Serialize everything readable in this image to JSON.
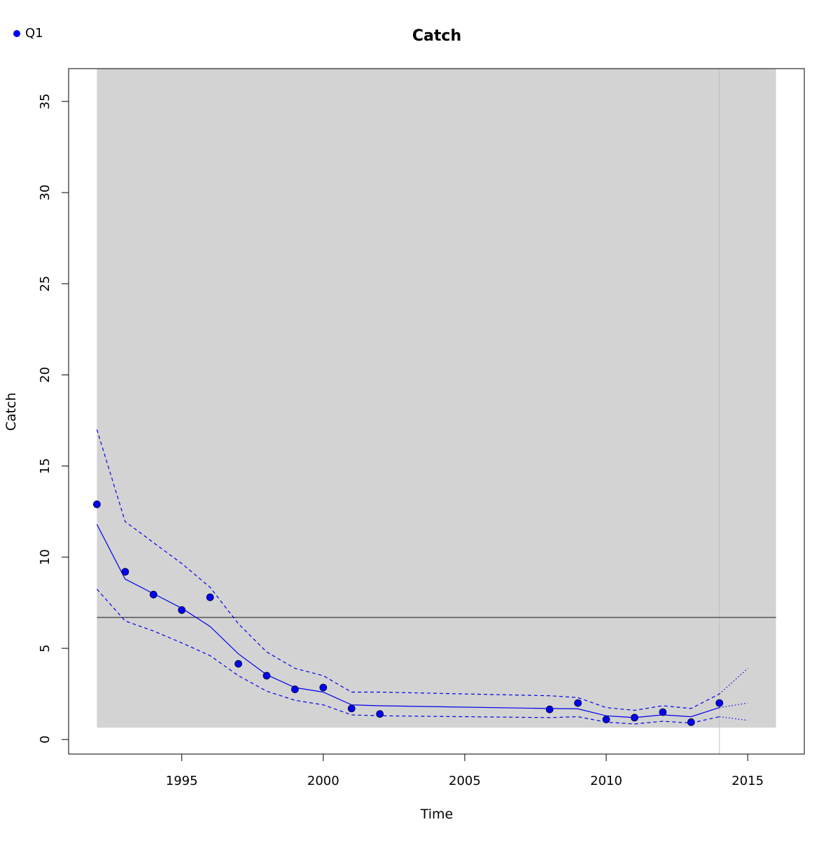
{
  "chart_data": {
    "type": "line",
    "title": "Catch",
    "xlabel": "Time",
    "ylabel": "Catch",
    "xlim": [
      1991,
      2017
    ],
    "ylim": [
      -0.8,
      36.8
    ],
    "xticks": [
      1995,
      2000,
      2005,
      2010,
      2015
    ],
    "yticks": [
      0,
      5,
      10,
      15,
      20,
      25,
      30,
      35
    ],
    "grid": false,
    "legend": {
      "position": "top-left",
      "entries": [
        {
          "label": "Q1",
          "color": "#0000ee"
        }
      ]
    },
    "background_band": {
      "x": [
        1992,
        2016
      ],
      "y": [
        0.65,
        36.8
      ],
      "color": "#d3d3d3"
    },
    "reference_hline": {
      "y": 6.7,
      "x": [
        1992,
        2016
      ],
      "color": "#555555"
    },
    "reference_vline": {
      "x": 2014,
      "color": "#bfbfbf"
    },
    "observed": {
      "name": "Q1",
      "color": "#0000ee",
      "x": [
        1992,
        1993,
        1994,
        1995,
        1996,
        1997,
        1998,
        1999,
        2000,
        2001,
        2002,
        2008,
        2009,
        2010,
        2011,
        2012,
        2013,
        2014
      ],
      "y": [
        12.9,
        9.2,
        7.95,
        7.1,
        7.8,
        4.15,
        3.5,
        2.75,
        2.85,
        1.7,
        1.4,
        1.65,
        2.0,
        1.1,
        1.2,
        1.5,
        0.95,
        2.0
      ]
    },
    "fitted": {
      "color": "#0000ee",
      "x": [
        1992,
        1993,
        1994,
        1995,
        1996,
        1997,
        1998,
        1999,
        2000,
        2001,
        2002,
        2008,
        2009,
        2010,
        2011,
        2012,
        2013,
        2014
      ],
      "y": [
        11.8,
        8.8,
        8.0,
        7.2,
        6.2,
        4.7,
        3.55,
        2.85,
        2.6,
        1.9,
        1.85,
        1.7,
        1.68,
        1.3,
        1.2,
        1.35,
        1.25,
        1.75
      ]
    },
    "upper_band": {
      "color": "#0000ee",
      "x": [
        1992,
        1993,
        1994,
        1995,
        1996,
        1997,
        1998,
        1999,
        2000,
        2001,
        2002,
        2008,
        2009,
        2010,
        2011,
        2012,
        2013,
        2014
      ],
      "y": [
        17.0,
        11.95,
        10.8,
        9.65,
        8.35,
        6.35,
        4.8,
        3.9,
        3.5,
        2.6,
        2.6,
        2.4,
        2.3,
        1.75,
        1.6,
        1.85,
        1.7,
        2.5
      ]
    },
    "lower_band": {
      "color": "#0000ee",
      "x": [
        1992,
        1993,
        1994,
        1995,
        1996,
        1997,
        1998,
        1999,
        2000,
        2001,
        2002,
        2008,
        2009,
        2010,
        2011,
        2012,
        2013,
        2014
      ],
      "y": [
        8.25,
        6.5,
        5.95,
        5.3,
        4.6,
        3.5,
        2.65,
        2.15,
        1.9,
        1.35,
        1.3,
        1.2,
        1.25,
        0.95,
        0.85,
        1.0,
        0.9,
        1.25
      ]
    },
    "forecast": {
      "color": "#0000ee",
      "x": [
        2014,
        2015
      ],
      "mid": [
        1.75,
        2.0
      ],
      "upper": [
        2.5,
        3.9
      ],
      "lower": [
        1.25,
        1.05
      ]
    }
  }
}
